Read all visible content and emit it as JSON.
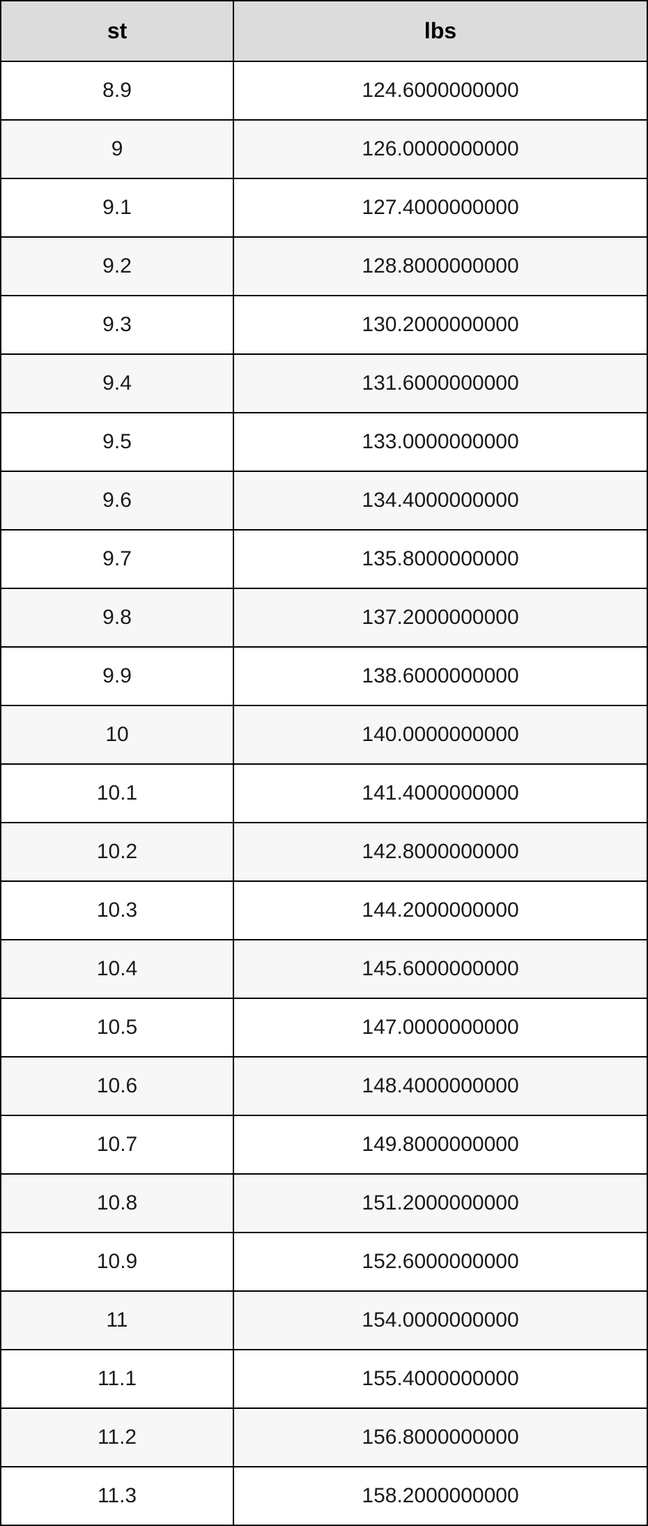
{
  "table": {
    "type": "table",
    "columns": [
      "st",
      "lbs"
    ],
    "column_widths": [
      "36%",
      "64%"
    ],
    "header_bg_color": "#dcdcdc",
    "header_fontsize": 32,
    "header_fontweight": "bold",
    "cell_fontsize": 30,
    "border_color": "#000000",
    "border_width": 2,
    "row_bg_odd": "#ffffff",
    "row_bg_even": "#f7f7f7",
    "text_color": "#1a1a1a",
    "text_align": "center",
    "rows": [
      [
        "8.9",
        "124.6000000000"
      ],
      [
        "9",
        "126.0000000000"
      ],
      [
        "9.1",
        "127.4000000000"
      ],
      [
        "9.2",
        "128.8000000000"
      ],
      [
        "9.3",
        "130.2000000000"
      ],
      [
        "9.4",
        "131.6000000000"
      ],
      [
        "9.5",
        "133.0000000000"
      ],
      [
        "9.6",
        "134.4000000000"
      ],
      [
        "9.7",
        "135.8000000000"
      ],
      [
        "9.8",
        "137.2000000000"
      ],
      [
        "9.9",
        "138.6000000000"
      ],
      [
        "10",
        "140.0000000000"
      ],
      [
        "10.1",
        "141.4000000000"
      ],
      [
        "10.2",
        "142.8000000000"
      ],
      [
        "10.3",
        "144.2000000000"
      ],
      [
        "10.4",
        "145.6000000000"
      ],
      [
        "10.5",
        "147.0000000000"
      ],
      [
        "10.6",
        "148.4000000000"
      ],
      [
        "10.7",
        "149.8000000000"
      ],
      [
        "10.8",
        "151.2000000000"
      ],
      [
        "10.9",
        "152.6000000000"
      ],
      [
        "11",
        "154.0000000000"
      ],
      [
        "11.1",
        "155.4000000000"
      ],
      [
        "11.2",
        "156.8000000000"
      ],
      [
        "11.3",
        "158.2000000000"
      ]
    ]
  }
}
